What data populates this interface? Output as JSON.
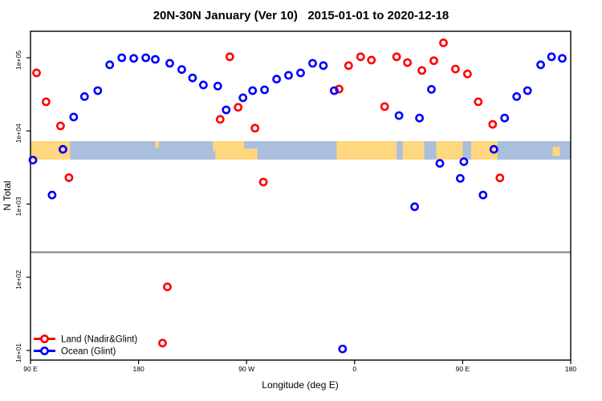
{
  "title": "20N-30N January (Ver 10)   2015-01-01 to 2020-12-18",
  "chart_data": {
    "type": "scatter",
    "title": "20N-30N January (Ver 10)   2015-01-01 to 2020-12-18",
    "xlabel": "Longitude (deg E)",
    "ylabel": "N Total",
    "x_axis": {
      "range_deg_east": [
        90,
        540
      ],
      "ticks": [
        90,
        180,
        270,
        360,
        450,
        540
      ],
      "tick_labels": [
        "90 E",
        "180",
        "90 W",
        "0",
        "90 E",
        "180"
      ]
    },
    "y_axis": {
      "scale": "log",
      "ticks": [
        100000.0,
        10000.0,
        1000.0,
        100.0,
        10.0
      ],
      "tick_labels": [
        "1e+05",
        "1e+04",
        "1e+03",
        "1e+02",
        "1e+01"
      ],
      "range": [
        7.4,
        230000.0
      ]
    },
    "ref_line": {
      "n": 220.0,
      "color": "#8A8A8A"
    },
    "map_band": {
      "ocean_color": "#AABFDD",
      "land_color": "#FFD77E",
      "land_segments": [
        {
          "from": 90,
          "to": 123,
          "top": 0,
          "bottom": 1
        },
        {
          "from": 194,
          "to": 197,
          "top": 0,
          "bottom": 0.35
        },
        {
          "from": 242,
          "to": 247,
          "top": 0,
          "bottom": 0.55
        },
        {
          "from": 244,
          "to": 268,
          "top": 0,
          "bottom": 1
        },
        {
          "from": 267,
          "to": 279,
          "top": 0.4,
          "bottom": 1
        },
        {
          "from": 345,
          "to": 395,
          "top": 0,
          "bottom": 1
        },
        {
          "from": 400,
          "to": 418,
          "top": 0,
          "bottom": 1
        },
        {
          "from": 428,
          "to": 450,
          "top": 0,
          "bottom": 1
        },
        {
          "from": 457,
          "to": 479,
          "top": 0,
          "bottom": 1
        },
        {
          "from": 525,
          "to": 531,
          "top": 0.3,
          "bottom": 0.8
        }
      ]
    },
    "legend": {
      "position": "bottom-left",
      "entries": [
        {
          "label": "Land (Nadir&Glint)",
          "color": "#FF0000"
        },
        {
          "label": "Ocean (Glint)",
          "color": "#0000FF"
        }
      ]
    },
    "series": [
      {
        "name": "Land (Nadir&Glint)",
        "color": "#FF0000",
        "points": [
          {
            "lon": 95,
            "n": 62000.0
          },
          {
            "lon": 103,
            "n": 25000.0
          },
          {
            "lon": 115,
            "n": 11700.0
          },
          {
            "lon": 122,
            "n": 2300.0
          },
          {
            "lon": 200,
            "n": 12.6
          },
          {
            "lon": 204,
            "n": 74.0
          },
          {
            "lon": 248,
            "n": 14400.0
          },
          {
            "lon": 256,
            "n": 103000.0
          },
          {
            "lon": 263,
            "n": 21000.0
          },
          {
            "lon": 277,
            "n": 10900.0
          },
          {
            "lon": 284,
            "n": 2000.0
          },
          {
            "lon": 347,
            "n": 37400.0
          },
          {
            "lon": 355,
            "n": 78000.0
          },
          {
            "lon": 365,
            "n": 103000.0
          },
          {
            "lon": 374,
            "n": 93000.0
          },
          {
            "lon": 385,
            "n": 21500.0
          },
          {
            "lon": 395,
            "n": 103000.0
          },
          {
            "lon": 404,
            "n": 86000.0
          },
          {
            "lon": 416,
            "n": 67000.0
          },
          {
            "lon": 426,
            "n": 91000.0
          },
          {
            "lon": 434,
            "n": 160000.0
          },
          {
            "lon": 444,
            "n": 70000.0
          },
          {
            "lon": 454,
            "n": 60000.0
          },
          {
            "lon": 463,
            "n": 25000.0
          },
          {
            "lon": 475,
            "n": 12300.0
          },
          {
            "lon": 481,
            "n": 2280.0
          }
        ]
      },
      {
        "name": "Ocean (Glint)",
        "color": "#0000FF",
        "points": [
          {
            "lon": 92,
            "n": 4000.0
          },
          {
            "lon": 108,
            "n": 1330.0
          },
          {
            "lon": 117,
            "n": 5600.0
          },
          {
            "lon": 126,
            "n": 15500.0
          },
          {
            "lon": 135,
            "n": 29500.0
          },
          {
            "lon": 146,
            "n": 35500.0
          },
          {
            "lon": 156,
            "n": 80000.0
          },
          {
            "lon": 166,
            "n": 100000.0
          },
          {
            "lon": 176,
            "n": 98000.0
          },
          {
            "lon": 186,
            "n": 100000.0
          },
          {
            "lon": 194,
            "n": 95000.0
          },
          {
            "lon": 206,
            "n": 84000.0
          },
          {
            "lon": 216,
            "n": 69000.0
          },
          {
            "lon": 225,
            "n": 53000.0
          },
          {
            "lon": 234,
            "n": 42500.0
          },
          {
            "lon": 246,
            "n": 41000.0
          },
          {
            "lon": 253,
            "n": 19400.0
          },
          {
            "lon": 267,
            "n": 28400.0
          },
          {
            "lon": 275,
            "n": 35500.0
          },
          {
            "lon": 285,
            "n": 36400.0
          },
          {
            "lon": 295,
            "n": 51000.0
          },
          {
            "lon": 305,
            "n": 57500.0
          },
          {
            "lon": 315,
            "n": 62000.0
          },
          {
            "lon": 325,
            "n": 84000.0
          },
          {
            "lon": 334,
            "n": 78000.0
          },
          {
            "lon": 343,
            "n": 35500.0
          },
          {
            "lon": 350,
            "n": 10.5
          },
          {
            "lon": 397,
            "n": 16200.0
          },
          {
            "lon": 410,
            "n": 920.0
          },
          {
            "lon": 414,
            "n": 15000.0
          },
          {
            "lon": 424,
            "n": 37000.0
          },
          {
            "lon": 431,
            "n": 3600.0
          },
          {
            "lon": 448,
            "n": 2250.0
          },
          {
            "lon": 451,
            "n": 3800.0
          },
          {
            "lon": 467,
            "n": 1330.0
          },
          {
            "lon": 476,
            "n": 5600.0
          },
          {
            "lon": 485,
            "n": 15000.0
          },
          {
            "lon": 495,
            "n": 29500.0
          },
          {
            "lon": 504,
            "n": 35500.0
          },
          {
            "lon": 515,
            "n": 80000.0
          },
          {
            "lon": 524,
            "n": 103000.0
          },
          {
            "lon": 533,
            "n": 98000.0
          }
        ]
      }
    ]
  }
}
